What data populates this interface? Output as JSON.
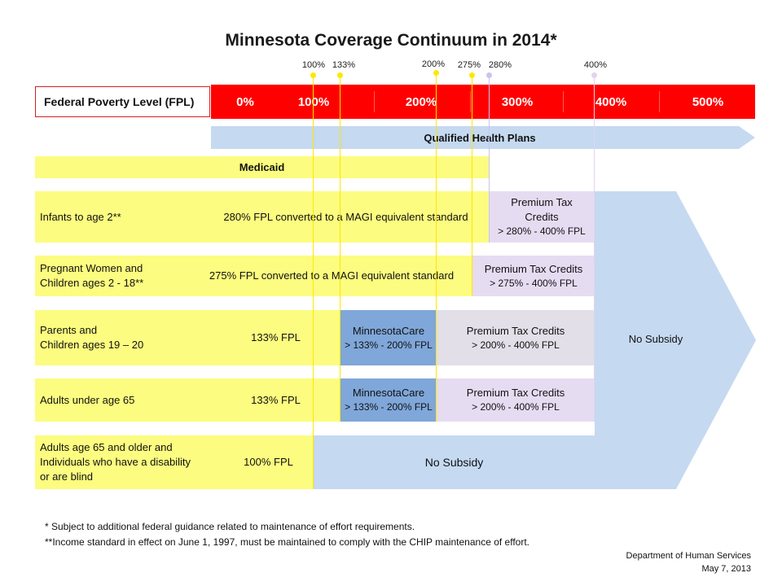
{
  "title": "Minnesota Coverage Continuum in 2014*",
  "fpl_markers": [
    "100%",
    "133%",
    "200%",
    "275%",
    "280%",
    "400%"
  ],
  "fpl_row": {
    "label": "Federal Poverty Level (FPL)",
    "ticks": [
      "0%",
      "100%",
      "200%",
      "300%",
      "400%",
      "500%"
    ]
  },
  "qhp_label": "Qualified Health Plans",
  "medicaid_label": "Medicaid",
  "rows": [
    {
      "group": "Infants to age 2**",
      "medicaid": "280% FPL converted to a MAGI equivalent standard",
      "ptc_line1": "Premium Tax",
      "ptc_line2": "Credits",
      "ptc_range": "> 280% - 400% FPL"
    },
    {
      "group_line1": "Pregnant Women and",
      "group_line2": "Children ages 2 - 18**",
      "medicaid": "275% FPL converted to a MAGI equivalent  standard",
      "ptc": "Premium Tax Credits",
      "ptc_range": "> 275% - 400% FPL"
    },
    {
      "group_line1": "Parents and",
      "group_line2": "Children ages 19 – 20",
      "medicaid": "133% FPL",
      "mncare": "MinnesotaCare",
      "mncare_range": "> 133% - 200% FPL",
      "ptc": "Premium Tax Credits",
      "ptc_range": "> 200% - 400% FPL"
    },
    {
      "group": "Adults under age 65",
      "medicaid": "133% FPL",
      "mncare": "MinnesotaCare",
      "mncare_range": "> 133% - 200% FPL",
      "ptc": "Premium Tax Credits",
      "ptc_range": "> 200% - 400% FPL"
    },
    {
      "group_line1": "Adults age 65 and older and",
      "group_line2": "Individuals who have a disability",
      "group_line3": "or are blind",
      "medicaid": "100% FPL",
      "no_subsidy": "No Subsidy"
    }
  ],
  "no_subsidy_label": "No Subsidy",
  "footnotes": [
    "* Subject to additional federal guidance related to maintenance of effort requirements.",
    "**Income standard in effect on June 1, 1997, must be maintained to comply with the CHIP maintenance of effort."
  ],
  "source": {
    "dept": "Department of Human Services",
    "date": "May 7, 2013"
  },
  "colors": {
    "fpl_bar": "#ff0000",
    "medicaid": "#fcfc80",
    "minnesotacare": "#7fa7d9",
    "premium_tax_credits": "#e6dcf2",
    "no_subsidy": "#c5d9f1"
  }
}
